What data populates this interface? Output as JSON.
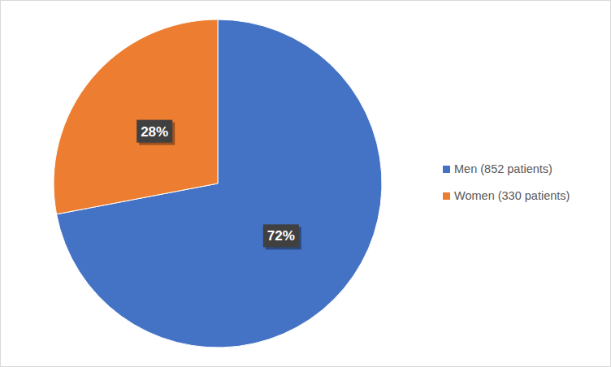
{
  "chart_data": {
    "type": "pie",
    "categories": [
      "Men (852 patients)",
      "Women (330 patients)"
    ],
    "values": [
      72,
      28
    ],
    "value_labels": [
      "72%",
      "28%"
    ],
    "colors": [
      "#4472c4",
      "#ed7d31"
    ],
    "data_labels": true,
    "legend": "right"
  }
}
